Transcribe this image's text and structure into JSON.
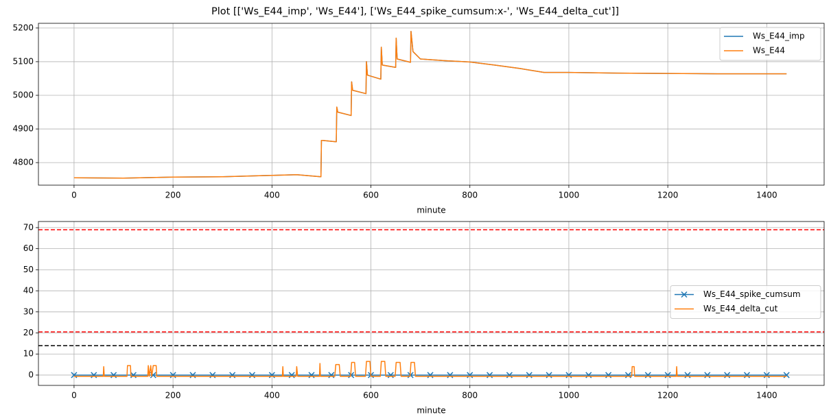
{
  "chart_data": [
    {
      "type": "line",
      "title": "Plot [['Ws_E44_imp', 'Ws_E44'], ['Ws_E44_spike_cumsum:x-', 'Ws_E44_delta_cut']]",
      "x_label": "minute",
      "xlim": [
        -72,
        1516
      ],
      "xticks": [
        0,
        200,
        400,
        600,
        800,
        1000,
        1200,
        1400
      ],
      "ylim": [
        4733,
        5214
      ],
      "yticks": [
        4800,
        4900,
        5000,
        5100,
        5200
      ],
      "grid": true,
      "legend": "upper right",
      "x": [
        0,
        100,
        200,
        300,
        400,
        450,
        499,
        500,
        502,
        530,
        531,
        533,
        560,
        561,
        563,
        590,
        591,
        593,
        620,
        621,
        623,
        650,
        651,
        653,
        680,
        681,
        685,
        700,
        750,
        800,
        850,
        900,
        950,
        1000,
        1100,
        1200,
        1300,
        1440
      ],
      "series": [
        {
          "name": "Ws_E44_imp",
          "color": "#1f77b4",
          "values": [
            4755,
            4754,
            4757,
            4758,
            4762,
            4764,
            4758,
            4866,
            4866,
            4862,
            4965,
            4950,
            4940,
            5040,
            5015,
            5005,
            5100,
            5060,
            5048,
            5143,
            5090,
            5083,
            5170,
            5108,
            5098,
            5190,
            5130,
            5108,
            5103,
            5099,
            5090,
            5080,
            5068,
            5068,
            5066,
            5065,
            5064,
            5064
          ]
        },
        {
          "name": "Ws_E44",
          "color": "#ff7f0e",
          "values": [
            4755,
            4754,
            4757,
            4758,
            4762,
            4764,
            4758,
            4866,
            4866,
            4862,
            4965,
            4950,
            4940,
            5040,
            5015,
            5005,
            5100,
            5060,
            5048,
            5143,
            5090,
            5083,
            5170,
            5108,
            5098,
            5190,
            5130,
            5108,
            5103,
            5099,
            5090,
            5080,
            5068,
            5068,
            5066,
            5065,
            5064,
            5064
          ]
        }
      ]
    },
    {
      "type": "line",
      "x_label": "minute",
      "xlim": [
        -72,
        1516
      ],
      "xticks": [
        0,
        200,
        400,
        600,
        800,
        1000,
        1200,
        1400
      ],
      "ylim": [
        -4.9,
        72.9
      ],
      "yticks": [
        0,
        10,
        20,
        30,
        40,
        50,
        60,
        70
      ],
      "grid": true,
      "legend": "center right",
      "hlines": [
        {
          "value": 69,
          "color": "red",
          "linestyle": "dashed"
        },
        {
          "value": 20.5,
          "color": "red",
          "linestyle": "dashed"
        },
        {
          "value": 14,
          "color": "black",
          "linestyle": "dashed"
        }
      ],
      "series": [
        {
          "name": "Ws_E44_spike_cumsum",
          "color": "#1f77b4",
          "marker": "x",
          "x": [
            0,
            40,
            80,
            120,
            160,
            200,
            240,
            280,
            320,
            360,
            400,
            440,
            480,
            520,
            560,
            600,
            640,
            680,
            720,
            760,
            800,
            840,
            880,
            920,
            960,
            1000,
            1040,
            1080,
            1120,
            1160,
            1200,
            1240,
            1280,
            1320,
            1360,
            1400,
            1440
          ],
          "values": [
            0,
            0,
            0,
            0,
            0,
            0,
            0,
            0,
            0,
            0,
            0,
            0,
            0,
            0,
            0,
            0,
            0,
            0,
            0,
            0,
            0,
            0,
            0,
            0,
            0,
            0,
            0,
            0,
            0,
            0,
            0,
            0,
            0,
            0,
            0,
            0,
            0
          ]
        },
        {
          "name": "Ws_E44_delta_cut",
          "color": "#ff7f0e",
          "x": [
            0,
            59,
            60,
            61,
            107,
            108,
            114,
            115,
            149,
            150,
            152,
            155,
            157,
            160,
            166,
            167,
            421,
            422,
            423,
            449,
            450,
            452,
            496,
            497,
            498,
            527,
            529,
            536,
            538,
            559,
            561,
            567,
            569,
            589,
            591,
            598,
            600,
            619,
            621,
            628,
            630,
            649,
            651,
            659,
            661,
            679,
            681,
            688,
            690,
            1127,
            1128,
            1132,
            1133,
            1217,
            1218,
            1219,
            1440
          ],
          "values": [
            -0.6,
            -0.6,
            4,
            -0.6,
            -0.6,
            4.5,
            4.5,
            -0.6,
            -0.6,
            4.5,
            -0.6,
            4.5,
            -0.6,
            4.5,
            4.5,
            -0.6,
            -0.6,
            4,
            -0.6,
            -0.6,
            4,
            -0.6,
            -0.6,
            5.5,
            -0.6,
            -0.6,
            5,
            5,
            -0.6,
            -0.6,
            6,
            6,
            -0.6,
            -0.6,
            6.5,
            6.5,
            -0.6,
            -0.6,
            6.5,
            6.5,
            -0.6,
            -0.6,
            6,
            6,
            -0.6,
            -0.6,
            6,
            6,
            -0.6,
            -0.6,
            4,
            4,
            -0.6,
            -0.6,
            4,
            -0.6,
            -0.6
          ]
        }
      ]
    }
  ]
}
